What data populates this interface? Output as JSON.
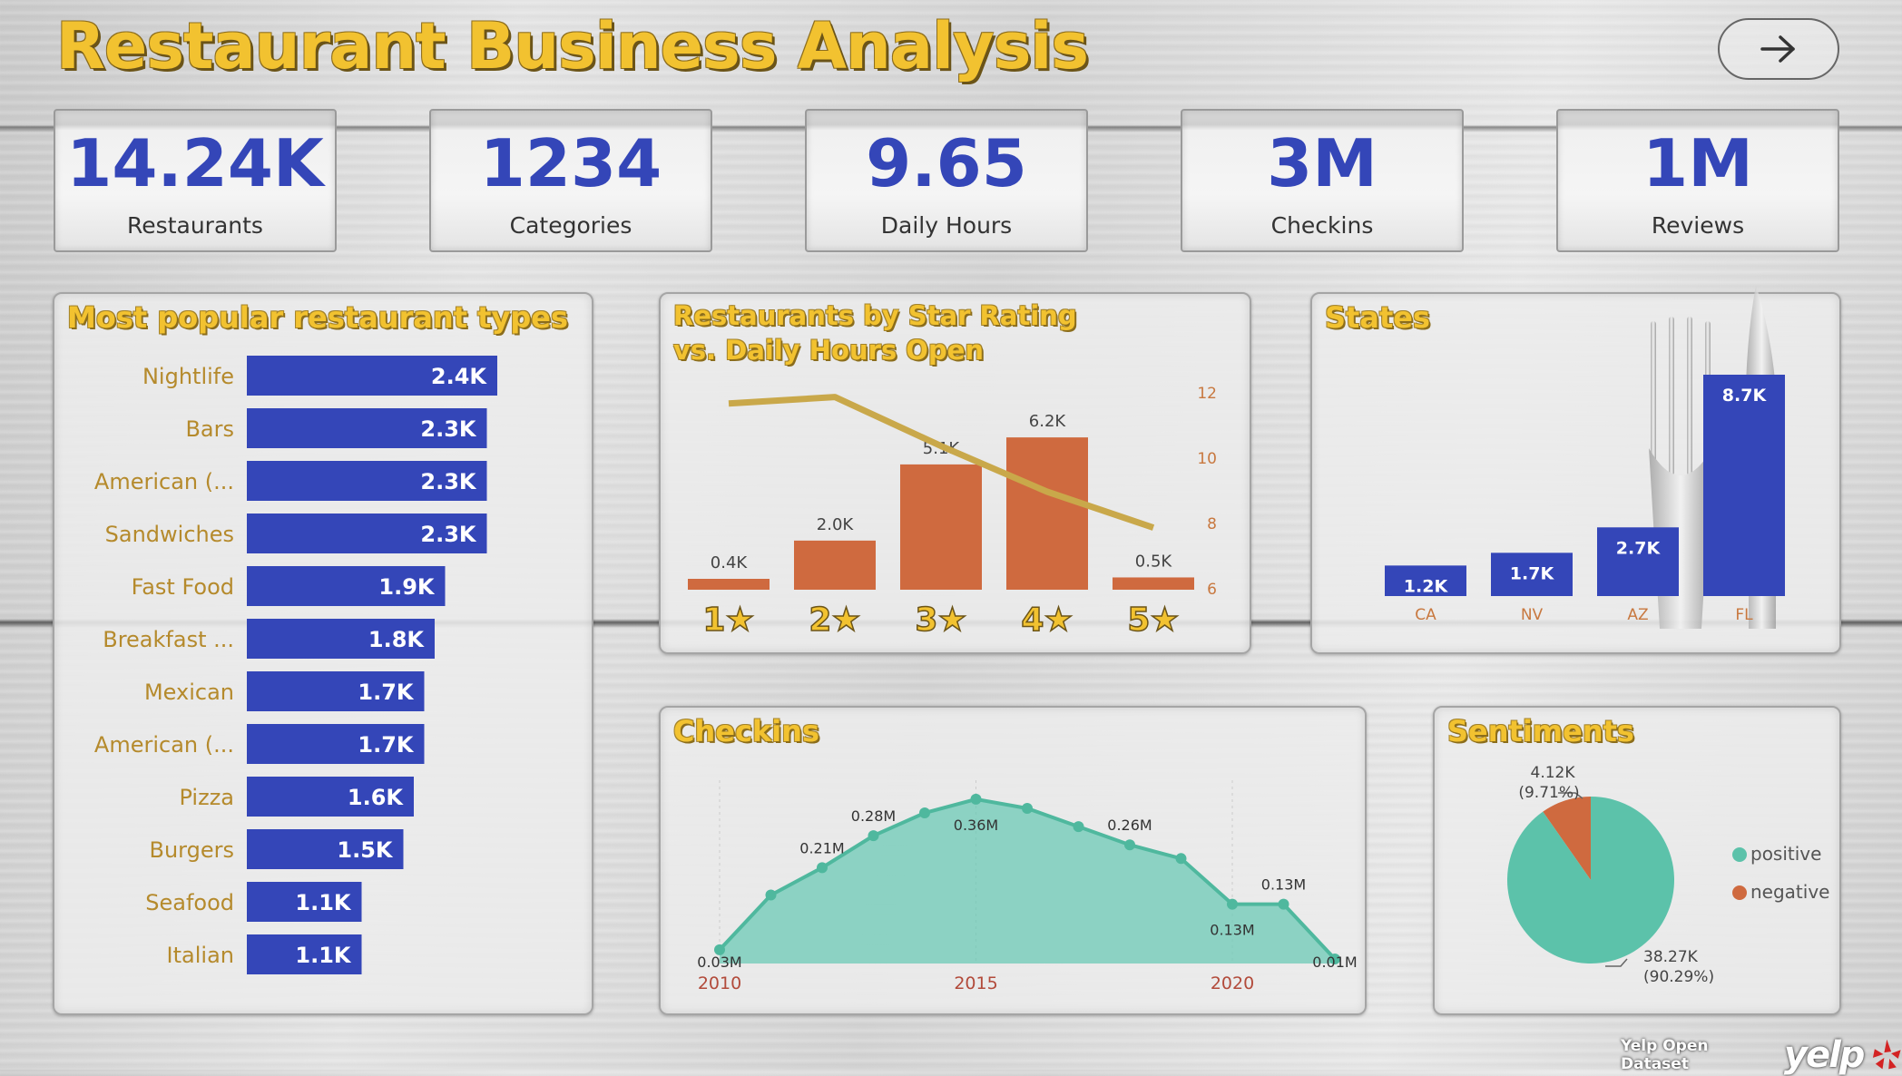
{
  "header": {
    "title": "Restaurant Business Analysis"
  },
  "kpis": [
    {
      "value": "14.24K",
      "label": "Restaurants"
    },
    {
      "value": "1234",
      "label": "Categories"
    },
    {
      "value": "9.65",
      "label": "Daily Hours"
    },
    {
      "value": "3M",
      "label": "Checkins"
    },
    {
      "value": "1M",
      "label": "Reviews"
    }
  ],
  "panels": {
    "types_title": "Most popular restaurant types",
    "stars_title_1": "Restaurants by Star Rating",
    "stars_title_2": "vs. Daily Hours Open",
    "states_title": "States",
    "checkins_title": "Checkins",
    "sentiments_title": "Sentiments"
  },
  "footer": {
    "source": "Yelp Open Dataset",
    "logo_text": "yelp"
  },
  "colors": {
    "bar_blue": "#3446b8",
    "bar_orange": "#cf6a3f",
    "line_gold": "#c9a84a",
    "area_teal": "#6ccab5",
    "negative": "#cf6a3f",
    "title_gold": "#f2c230",
    "label_gold": "#b58a2c"
  },
  "chart_data": [
    {
      "type": "bar",
      "orientation": "horizontal",
      "title": "Most popular restaurant types",
      "categories": [
        "Nightlife",
        "Bars",
        "American (...",
        "Sandwiches",
        "Fast Food",
        "Breakfast ...",
        "Mexican",
        "American (...",
        "Pizza",
        "Burgers",
        "Seafood",
        "Italian"
      ],
      "values": [
        2.4,
        2.3,
        2.3,
        2.3,
        1.9,
        1.8,
        1.7,
        1.7,
        1.6,
        1.5,
        1.1,
        1.1
      ],
      "labels": [
        "2.4K",
        "2.3K",
        "2.3K",
        "2.3K",
        "1.9K",
        "1.8K",
        "1.7K",
        "1.7K",
        "1.6K",
        "1.5K",
        "1.1K",
        "1.1K"
      ],
      "xlim": [
        0,
        2.4
      ]
    },
    {
      "type": "bar",
      "title": "Restaurants by Star Rating vs. Daily Hours Open",
      "categories": [
        "1★",
        "2★",
        "3★",
        "4★",
        "5★"
      ],
      "series": [
        {
          "values": [
            0.4,
            2.0,
            5.1,
            6.2,
            0.5
          ],
          "labels": [
            "0.4K",
            "2.0K",
            "5.1K",
            "6.2K",
            "0.5K"
          ]
        },
        {
          "type": "line",
          "values": [
            11.7,
            11.9,
            10.4,
            9.0,
            7.9
          ]
        }
      ],
      "ylim": [
        0,
        6.5
      ],
      "y2lim": [
        6,
        12
      ],
      "y2ticks": [
        "12",
        "10",
        "8",
        "6"
      ]
    },
    {
      "type": "bar",
      "title": "States",
      "categories": [
        "CA",
        "NV",
        "AZ",
        "FL"
      ],
      "values": [
        1.2,
        1.7,
        2.7,
        8.7
      ],
      "labels": [
        "1.2K",
        "1.7K",
        "2.7K",
        "8.7K"
      ],
      "ylim": [
        0,
        8.7
      ]
    },
    {
      "type": "area",
      "title": "Checkins",
      "x": [
        2010,
        2011,
        2012,
        2013,
        2014,
        2015,
        2016,
        2017,
        2018,
        2019,
        2020,
        2021,
        2022
      ],
      "values": [
        0.03,
        0.15,
        0.21,
        0.28,
        0.33,
        0.36,
        0.34,
        0.3,
        0.26,
        0.23,
        0.13,
        0.13,
        0.01
      ],
      "point_labels": [
        "0.03M",
        "",
        "0.21M",
        "0.28M",
        "",
        "0.36M",
        "",
        "",
        "0.26M",
        "",
        "0.13M",
        "0.13M",
        "0.01M"
      ],
      "xticks": [
        "2010",
        "2015",
        "2020"
      ],
      "ylim": [
        0,
        0.4
      ]
    },
    {
      "type": "pie",
      "title": "Sentiments",
      "categories": [
        "positive",
        "negative"
      ],
      "values": [
        38.27,
        4.12
      ],
      "value_labels": [
        "38.27K",
        "4.12K"
      ],
      "pct_labels": [
        "(90.29%)",
        "(9.71%)"
      ],
      "colors": [
        "#5cc2aa",
        "#cf6a3f"
      ],
      "legend": "right"
    }
  ]
}
